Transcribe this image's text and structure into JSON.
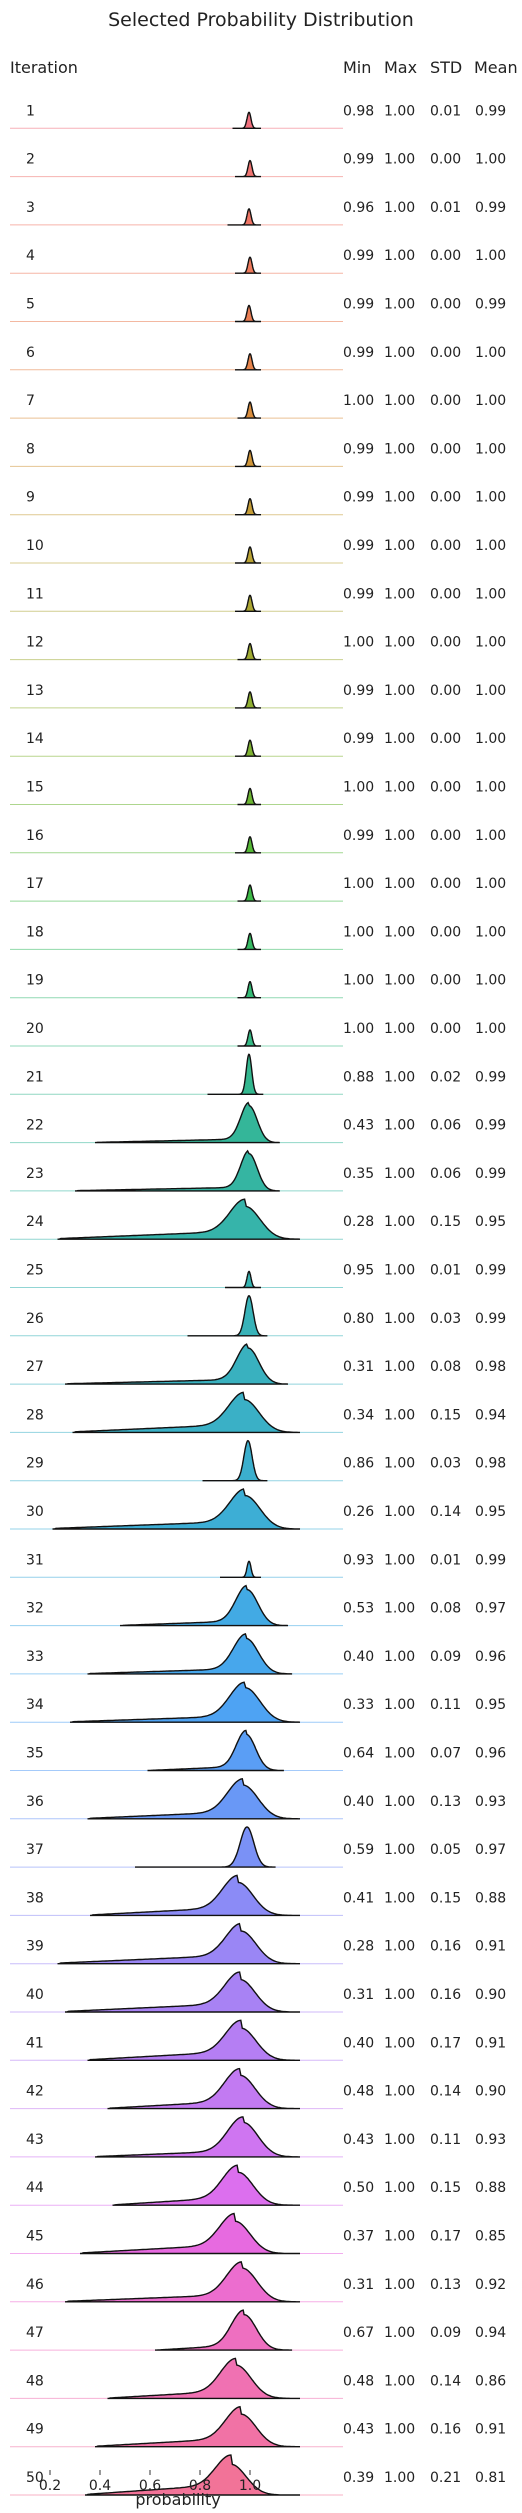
{
  "chart_data": {
    "type": "ridgeline",
    "title": "Selected Probability Distribution",
    "row_header": "Iteration",
    "stat_headers": [
      "Min",
      "Max",
      "STD",
      "Mean"
    ],
    "xlabel": "probability",
    "x_ticks": [
      "0.2",
      "0.4",
      "0.6",
      "0.8",
      "1.0"
    ],
    "xlim": [
      0.08,
      1.25
    ],
    "rows": [
      {
        "label": "1",
        "min": "0.98",
        "max": "1.00",
        "std": "0.01",
        "mean": "0.99",
        "color": "#f0707d"
      },
      {
        "label": "2",
        "min": "0.99",
        "max": "1.00",
        "std": "0.00",
        "mean": "1.00",
        "color": "#ef7470"
      },
      {
        "label": "3",
        "min": "0.96",
        "max": "1.00",
        "std": "0.01",
        "mean": "0.99",
        "color": "#ee7565"
      },
      {
        "label": "4",
        "min": "0.99",
        "max": "1.00",
        "std": "0.00",
        "mean": "1.00",
        "color": "#ed7a5c"
      },
      {
        "label": "5",
        "min": "0.99",
        "max": "1.00",
        "std": "0.00",
        "mean": "0.99",
        "color": "#ea7e54"
      },
      {
        "label": "6",
        "min": "0.99",
        "max": "1.00",
        "std": "0.00",
        "mean": "1.00",
        "color": "#e5834b"
      },
      {
        "label": "7",
        "min": "1.00",
        "max": "1.00",
        "std": "0.00",
        "mean": "1.00",
        "color": "#d98d3d"
      },
      {
        "label": "8",
        "min": "0.99",
        "max": "1.00",
        "std": "0.00",
        "mean": "1.00",
        "color": "#cf9538"
      },
      {
        "label": "9",
        "min": "0.99",
        "max": "1.00",
        "std": "0.00",
        "mean": "1.00",
        "color": "#c49c36"
      },
      {
        "label": "10",
        "min": "0.99",
        "max": "1.00",
        "std": "0.00",
        "mean": "1.00",
        "color": "#b9a234"
      },
      {
        "label": "11",
        "min": "0.99",
        "max": "1.00",
        "std": "0.00",
        "mean": "1.00",
        "color": "#aca633"
      },
      {
        "label": "12",
        "min": "1.00",
        "max": "1.00",
        "std": "0.00",
        "mean": "1.00",
        "color": "#9faa32"
      },
      {
        "label": "13",
        "min": "0.99",
        "max": "1.00",
        "std": "0.00",
        "mean": "1.00",
        "color": "#8fae31"
      },
      {
        "label": "14",
        "min": "0.99",
        "max": "1.00",
        "std": "0.00",
        "mean": "1.00",
        "color": "#7fb231"
      },
      {
        "label": "15",
        "min": "1.00",
        "max": "1.00",
        "std": "0.00",
        "mean": "1.00",
        "color": "#6cb532"
      },
      {
        "label": "16",
        "min": "0.99",
        "max": "1.00",
        "std": "0.00",
        "mean": "1.00",
        "color": "#55b836"
      },
      {
        "label": "17",
        "min": "1.00",
        "max": "1.00",
        "std": "0.00",
        "mean": "1.00",
        "color": "#3cb946"
      },
      {
        "label": "18",
        "min": "1.00",
        "max": "1.00",
        "std": "0.00",
        "mean": "1.00",
        "color": "#36b962"
      },
      {
        "label": "19",
        "min": "1.00",
        "max": "1.00",
        "std": "0.00",
        "mean": "1.00",
        "color": "#35b975"
      },
      {
        "label": "20",
        "min": "1.00",
        "max": "1.00",
        "std": "0.00",
        "mean": "1.00",
        "color": "#35b884"
      },
      {
        "label": "21",
        "min": "0.88",
        "max": "1.00",
        "std": "0.02",
        "mean": "0.99",
        "color": "#34b78f"
      },
      {
        "label": "22",
        "min": "0.43",
        "max": "1.00",
        "std": "0.06",
        "mean": "0.99",
        "color": "#34b699"
      },
      {
        "label": "23",
        "min": "0.35",
        "max": "1.00",
        "std": "0.06",
        "mean": "0.99",
        "color": "#35b5a2"
      },
      {
        "label": "24",
        "min": "0.28",
        "max": "1.00",
        "std": "0.15",
        "mean": "0.95",
        "color": "#36b4aa"
      },
      {
        "label": "25",
        "min": "0.95",
        "max": "1.00",
        "std": "0.01",
        "mean": "0.99",
        "color": "#37b3b1"
      },
      {
        "label": "26",
        "min": "0.80",
        "max": "1.00",
        "std": "0.03",
        "mean": "0.99",
        "color": "#38b2b8"
      },
      {
        "label": "27",
        "min": "0.31",
        "max": "1.00",
        "std": "0.08",
        "mean": "0.98",
        "color": "#39b1bf"
      },
      {
        "label": "28",
        "min": "0.34",
        "max": "1.00",
        "std": "0.15",
        "mean": "0.94",
        "color": "#3ab0c6"
      },
      {
        "label": "29",
        "min": "0.86",
        "max": "1.00",
        "std": "0.03",
        "mean": "0.98",
        "color": "#3bafcd"
      },
      {
        "label": "30",
        "min": "0.26",
        "max": "1.00",
        "std": "0.14",
        "mean": "0.95",
        "color": "#3daed5"
      },
      {
        "label": "31",
        "min": "0.93",
        "max": "1.00",
        "std": "0.01",
        "mean": "0.99",
        "color": "#3facdc"
      },
      {
        "label": "32",
        "min": "0.53",
        "max": "1.00",
        "std": "0.08",
        "mean": "0.97",
        "color": "#42aae4"
      },
      {
        "label": "33",
        "min": "0.40",
        "max": "1.00",
        "std": "0.09",
        "mean": "0.96",
        "color": "#47a7ec"
      },
      {
        "label": "34",
        "min": "0.33",
        "max": "1.00",
        "std": "0.11",
        "mean": "0.95",
        "color": "#4ea3f3"
      },
      {
        "label": "35",
        "min": "0.64",
        "max": "1.00",
        "std": "0.07",
        "mean": "0.96",
        "color": "#5a9ef5"
      },
      {
        "label": "36",
        "min": "0.40",
        "max": "1.00",
        "std": "0.13",
        "mean": "0.93",
        "color": "#6998f6"
      },
      {
        "label": "37",
        "min": "0.59",
        "max": "1.00",
        "std": "0.05",
        "mean": "0.97",
        "color": "#7a91f6"
      },
      {
        "label": "38",
        "min": "0.41",
        "max": "1.00",
        "std": "0.15",
        "mean": "0.88",
        "color": "#8b8bf6"
      },
      {
        "label": "39",
        "min": "0.28",
        "max": "1.00",
        "std": "0.16",
        "mean": "0.91",
        "color": "#9a86f5"
      },
      {
        "label": "40",
        "min": "0.31",
        "max": "1.00",
        "std": "0.16",
        "mean": "0.90",
        "color": "#a882f4"
      },
      {
        "label": "41",
        "min": "0.40",
        "max": "1.00",
        "std": "0.17",
        "mean": "0.91",
        "color": "#b57ef3"
      },
      {
        "label": "42",
        "min": "0.48",
        "max": "1.00",
        "std": "0.14",
        "mean": "0.90",
        "color": "#c27af2"
      },
      {
        "label": "43",
        "min": "0.43",
        "max": "1.00",
        "std": "0.11",
        "mean": "0.93",
        "color": "#cf75f1"
      },
      {
        "label": "44",
        "min": "0.50",
        "max": "1.00",
        "std": "0.15",
        "mean": "0.88",
        "color": "#dc6fee"
      },
      {
        "label": "45",
        "min": "0.37",
        "max": "1.00",
        "std": "0.17",
        "mean": "0.85",
        "color": "#e76ae0"
      },
      {
        "label": "46",
        "min": "0.31",
        "max": "1.00",
        "std": "0.13",
        "mean": "0.92",
        "color": "#ec6dcf"
      },
      {
        "label": "47",
        "min": "0.67",
        "max": "1.00",
        "std": "0.09",
        "mean": "0.94",
        "color": "#ee6fc0"
      },
      {
        "label": "48",
        "min": "0.48",
        "max": "1.00",
        "std": "0.14",
        "mean": "0.86",
        "color": "#f071b2"
      },
      {
        "label": "49",
        "min": "0.43",
        "max": "1.00",
        "std": "0.16",
        "mean": "0.91",
        "color": "#f172a5"
      },
      {
        "label": "50",
        "min": "0.39",
        "max": "1.00",
        "std": "0.21",
        "mean": "0.81",
        "color": "#f27398"
      }
    ]
  }
}
